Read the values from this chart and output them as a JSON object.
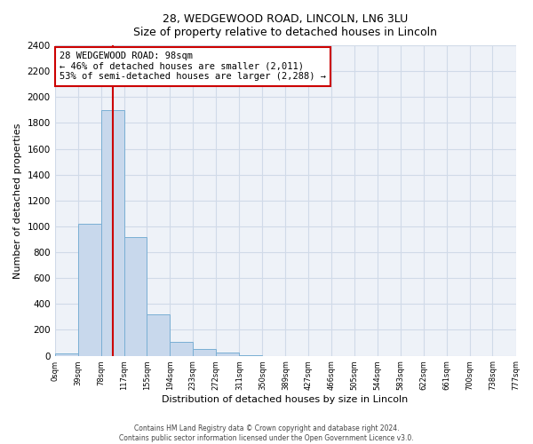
{
  "title_line1": "28, WEDGEWOOD ROAD, LINCOLN, LN6 3LU",
  "title_line2": "Size of property relative to detached houses in Lincoln",
  "xlabel": "Distribution of detached houses by size in Lincoln",
  "ylabel": "Number of detached properties",
  "bar_heights": [
    20,
    1020,
    1900,
    920,
    320,
    110,
    55,
    25,
    5,
    0,
    0,
    0,
    0,
    0,
    0,
    0,
    0,
    0,
    0,
    0
  ],
  "bin_edges": [
    0,
    39,
    78,
    117,
    155,
    194,
    233,
    272,
    311,
    350,
    389,
    427,
    466,
    505,
    544,
    583,
    622,
    661,
    700,
    738,
    777
  ],
  "tick_labels": [
    "0sqm",
    "39sqm",
    "78sqm",
    "117sqm",
    "155sqm",
    "194sqm",
    "233sqm",
    "272sqm",
    "311sqm",
    "350sqm",
    "389sqm",
    "427sqm",
    "466sqm",
    "505sqm",
    "544sqm",
    "583sqm",
    "622sqm",
    "661sqm",
    "700sqm",
    "738sqm",
    "777sqm"
  ],
  "bar_color": "#c8d8ec",
  "bar_edge_color": "#7aafd4",
  "vline_x": 98,
  "vline_color": "#cc0000",
  "annotation_text": "28 WEDGEWOOD ROAD: 98sqm\n← 46% of detached houses are smaller (2,011)\n53% of semi-detached houses are larger (2,288) →",
  "annotation_box_color": "#ffffff",
  "annotation_box_edge": "#cc0000",
  "ylim": [
    0,
    2400
  ],
  "yticks": [
    0,
    200,
    400,
    600,
    800,
    1000,
    1200,
    1400,
    1600,
    1800,
    2000,
    2200,
    2400
  ],
  "footer_line1": "Contains HM Land Registry data © Crown copyright and database right 2024.",
  "footer_line2": "Contains public sector information licensed under the Open Government Licence v3.0.",
  "grid_color": "#d0dae8",
  "background_color": "#eef2f8"
}
